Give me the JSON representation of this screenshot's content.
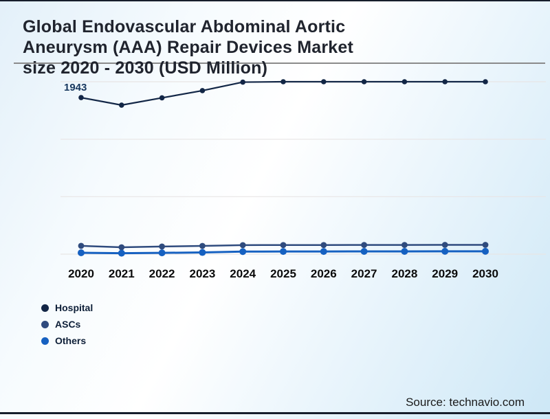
{
  "page": {
    "title_lines": [
      "Global Endovascular Abdominal Aortic",
      "Aneurysm (AAA) Repair Devices Market",
      "size 2020 - 2030 (USD Million)"
    ],
    "source": "Source: technavio.com"
  },
  "colors": {
    "title_text": "#20242e",
    "separator_rule": "#8a8a8a",
    "top_bar": "#161d2b",
    "bottom_bar": "#161d2b",
    "grid": "#e8e5e5",
    "axis_text": "#0b0b0b",
    "legend_text": "#0e1f38",
    "point_label_text": "#17375e"
  },
  "chart_data": {
    "type": "line",
    "title": "Global Endovascular Abdominal Aortic Aneurysm (AAA) Repair Devices Market size 2020 - 2030 (USD Million)",
    "xlabel": "",
    "ylabel": "",
    "x": [
      "2020",
      "2021",
      "2022",
      "2023",
      "2024",
      "2025",
      "2026",
      "2027",
      "2028",
      "2029",
      "2030"
    ],
    "series": [
      {
        "name": "Hospital",
        "color": "#122646",
        "values": [
          1943,
          1850,
          1940,
          2030,
          2135,
          2140,
          2140,
          2140,
          2140,
          2140,
          2140
        ]
      },
      {
        "name": "ASCs",
        "color": "#2f4b7e",
        "values": [
          103,
          85,
          95,
          102,
          112,
          113,
          113,
          114,
          114,
          115,
          115
        ]
      },
      {
        "name": "Others",
        "color": "#1661c1",
        "values": [
          17,
          12,
          16,
          21,
          32,
          33,
          33,
          34,
          34,
          35,
          35
        ]
      }
    ],
    "ylim": [
      0,
      2140
    ],
    "grid": "horizontal",
    "gridline_count": 4,
    "legend_position": "bottom-left",
    "point_label": {
      "series": "Hospital",
      "x": "2020",
      "text": "1943"
    }
  }
}
